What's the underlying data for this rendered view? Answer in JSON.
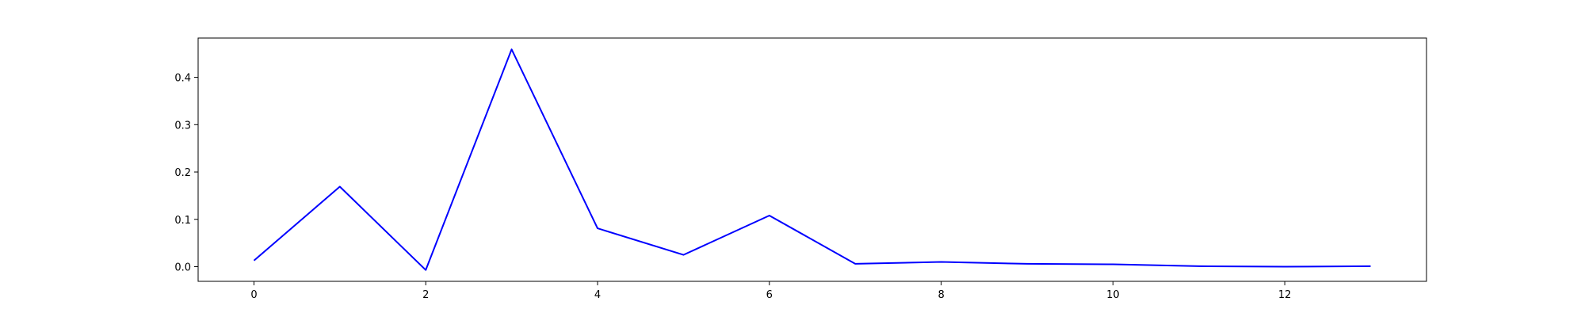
{
  "chart_data": {
    "type": "line",
    "title": "",
    "xlabel": "",
    "ylabel": "",
    "xlim": [
      -0.65,
      13.65
    ],
    "ylim": [
      -0.031,
      0.483
    ],
    "x_ticks": [
      0,
      2,
      4,
      6,
      8,
      10,
      12
    ],
    "y_ticks": [
      0.0,
      0.1,
      0.2,
      0.3,
      0.4
    ],
    "x_tick_labels": [
      "0",
      "2",
      "4",
      "6",
      "8",
      "10",
      "12"
    ],
    "y_tick_labels": [
      "0.0",
      "0.1",
      "0.2",
      "0.3",
      "0.4"
    ],
    "grid": false,
    "legend": "none",
    "series": [
      {
        "color": "#0000ff",
        "x": [
          0,
          1,
          2,
          3,
          4,
          5,
          6,
          7,
          8,
          9,
          10,
          11,
          12,
          13
        ],
        "y": [
          0.013,
          0.169,
          -0.007,
          0.459,
          0.081,
          0.025,
          0.108,
          0.006,
          0.01,
          0.006,
          0.005,
          0.001,
          0.0,
          0.001
        ]
      }
    ]
  }
}
